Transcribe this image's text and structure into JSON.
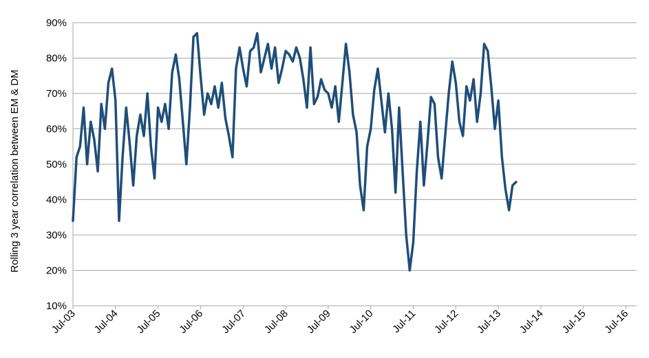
{
  "chart_data": {
    "type": "line",
    "title": "",
    "xlabel": "",
    "ylabel": "Rolling 3 year correlation between EM & DM",
    "ylim": [
      10,
      90
    ],
    "y_unit": "%",
    "y_ticks": [
      "10%",
      "20%",
      "30%",
      "40%",
      "50%",
      "60%",
      "70%",
      "80%",
      "90%"
    ],
    "x_ticks": [
      "Jul-03",
      "Jul-04",
      "Jul-05",
      "Jul-06",
      "Jul-07",
      "Jul-08",
      "Jul-09",
      "Jul-10",
      "Jul-11",
      "Jul-12",
      "Jul-13",
      "Jul-14",
      "Jul-15",
      "Jul-16"
    ],
    "xlim": [
      "2003-07",
      "2016-10"
    ],
    "grid": "horizontal",
    "legend": "none",
    "colors": {
      "line": "#1f4e79",
      "grid": "#a6a6a6",
      "axis": "#a6a6a6"
    },
    "series": [
      {
        "points": [
          [
            "2003-07",
            34
          ],
          [
            "2003-08",
            52
          ],
          [
            "2003-09",
            55
          ],
          [
            "2003-10",
            66
          ],
          [
            "2003-11",
            50
          ],
          [
            "2003-12",
            62
          ],
          [
            "2004-01",
            57
          ],
          [
            "2004-02",
            48
          ],
          [
            "2004-03",
            67
          ],
          [
            "2004-04",
            60
          ],
          [
            "2004-05",
            73
          ],
          [
            "2004-06",
            77
          ],
          [
            "2004-07",
            68
          ],
          [
            "2004-08",
            34
          ],
          [
            "2004-09",
            52
          ],
          [
            "2004-10",
            66
          ],
          [
            "2004-11",
            56
          ],
          [
            "2004-12",
            44
          ],
          [
            "2005-01",
            58
          ],
          [
            "2005-02",
            64
          ],
          [
            "2005-03",
            58
          ],
          [
            "2005-04",
            70
          ],
          [
            "2005-05",
            55
          ],
          [
            "2005-06",
            46
          ],
          [
            "2005-07",
            66
          ],
          [
            "2005-08",
            62
          ],
          [
            "2005-09",
            67
          ],
          [
            "2005-10",
            60
          ],
          [
            "2005-11",
            76
          ],
          [
            "2005-12",
            81
          ],
          [
            "2006-01",
            74
          ],
          [
            "2006-02",
            62
          ],
          [
            "2006-03",
            50
          ],
          [
            "2006-04",
            66
          ],
          [
            "2006-05",
            86
          ],
          [
            "2006-06",
            87
          ],
          [
            "2006-07",
            75
          ],
          [
            "2006-08",
            64
          ],
          [
            "2006-09",
            70
          ],
          [
            "2006-10",
            67
          ],
          [
            "2006-11",
            72
          ],
          [
            "2006-12",
            66
          ],
          [
            "2007-01",
            73
          ],
          [
            "2007-02",
            63
          ],
          [
            "2007-03",
            58
          ],
          [
            "2007-04",
            52
          ],
          [
            "2007-05",
            77
          ],
          [
            "2007-06",
            83
          ],
          [
            "2007-07",
            77
          ],
          [
            "2007-08",
            72
          ],
          [
            "2007-09",
            82
          ],
          [
            "2007-10",
            83
          ],
          [
            "2007-11",
            87
          ],
          [
            "2007-12",
            76
          ],
          [
            "2008-01",
            80
          ],
          [
            "2008-02",
            84
          ],
          [
            "2008-03",
            77
          ],
          [
            "2008-04",
            83
          ],
          [
            "2008-05",
            73
          ],
          [
            "2008-06",
            77
          ],
          [
            "2008-07",
            82
          ],
          [
            "2008-08",
            81
          ],
          [
            "2008-09",
            79
          ],
          [
            "2008-10",
            83
          ],
          [
            "2008-11",
            80
          ],
          [
            "2008-12",
            74
          ],
          [
            "2009-01",
            66
          ],
          [
            "2009-02",
            83
          ],
          [
            "2009-03",
            67
          ],
          [
            "2009-04",
            69
          ],
          [
            "2009-05",
            74
          ],
          [
            "2009-06",
            71
          ],
          [
            "2009-07",
            70
          ],
          [
            "2009-08",
            66
          ],
          [
            "2009-09",
            72
          ],
          [
            "2009-10",
            62
          ],
          [
            "2009-11",
            73
          ],
          [
            "2009-12",
            84
          ],
          [
            "2010-01",
            76
          ],
          [
            "2010-02",
            64
          ],
          [
            "2010-03",
            59
          ],
          [
            "2010-04",
            44
          ],
          [
            "2010-05",
            37
          ],
          [
            "2010-06",
            55
          ],
          [
            "2010-07",
            60
          ],
          [
            "2010-08",
            71
          ],
          [
            "2010-09",
            77
          ],
          [
            "2010-10",
            68
          ],
          [
            "2010-11",
            59
          ],
          [
            "2010-12",
            70
          ],
          [
            "2011-01",
            60
          ],
          [
            "2011-02",
            42
          ],
          [
            "2011-03",
            66
          ],
          [
            "2011-04",
            48
          ],
          [
            "2011-05",
            30
          ],
          [
            "2011-06",
            20
          ],
          [
            "2011-07",
            28
          ],
          [
            "2011-08",
            48
          ],
          [
            "2011-09",
            62
          ],
          [
            "2011-10",
            44
          ],
          [
            "2011-11",
            56
          ],
          [
            "2011-12",
            69
          ],
          [
            "2012-01",
            67
          ],
          [
            "2012-02",
            52
          ],
          [
            "2012-03",
            46
          ],
          [
            "2012-04",
            58
          ],
          [
            "2012-05",
            70
          ],
          [
            "2012-06",
            79
          ],
          [
            "2012-07",
            73
          ],
          [
            "2012-08",
            62
          ],
          [
            "2012-09",
            58
          ],
          [
            "2012-10",
            72
          ],
          [
            "2012-11",
            68
          ],
          [
            "2012-12",
            74
          ],
          [
            "2013-01",
            62
          ],
          [
            "2013-02",
            70
          ],
          [
            "2013-03",
            84
          ],
          [
            "2013-04",
            82
          ],
          [
            "2013-05",
            72
          ],
          [
            "2013-06",
            60
          ],
          [
            "2013-07",
            68
          ],
          [
            "2013-08",
            52
          ],
          [
            "2013-09",
            43
          ],
          [
            "2013-10",
            37
          ],
          [
            "2013-11",
            44
          ],
          [
            "2013-12",
            45
          ]
        ]
      }
    ]
  }
}
